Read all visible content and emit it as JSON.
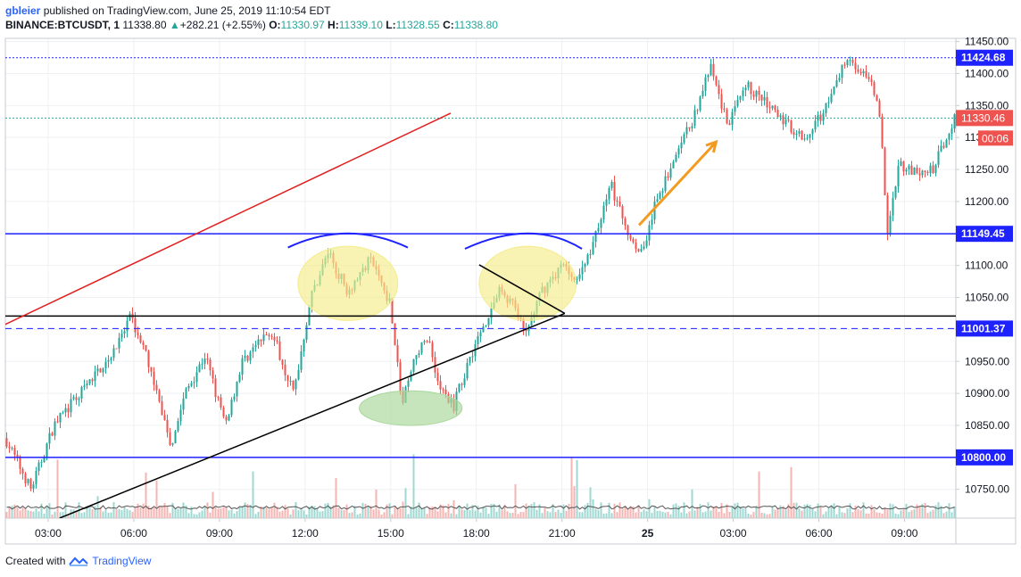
{
  "header": {
    "author": "gbleier",
    "published_text": "published on TradingView.com, June 25, 2019 11:10:54 EDT",
    "symbol": "BINANCE:BTCUSDT, 1",
    "last": "11338.80",
    "change": "+282.21 (+2.55%)",
    "open_label": "O:",
    "open": "11330.97",
    "high_label": "H:",
    "high": "11339.10",
    "low_label": "L:",
    "low": "11328.55",
    "close_label": "C:",
    "close": "11338.80"
  },
  "footer": {
    "created_with": "Created with",
    "brand": "TradingView"
  },
  "chart_data": {
    "type": "candlestick",
    "y_range": [
      10705,
      11455
    ],
    "x_range_hours": [
      1.5,
      34.8
    ],
    "y_ticks": [
      11450,
      11400,
      11350,
      11300,
      11250,
      11200,
      11150,
      11100,
      11050,
      11000,
      10950,
      10900,
      10850,
      10800,
      10750
    ],
    "y_tick_labels": [
      "11450.00",
      "11400.00",
      "11350.00",
      "11300.00",
      "11250.00",
      "11200.00",
      "11150.00",
      "11100.00",
      "11050.00",
      "11000.00",
      "10950.00",
      "10900.00",
      "10850.00",
      "10800.00",
      "10750.00"
    ],
    "x_ticks": [
      {
        "h": 3,
        "label": "03:00"
      },
      {
        "h": 6,
        "label": "06:00"
      },
      {
        "h": 9,
        "label": "09:00"
      },
      {
        "h": 12,
        "label": "12:00"
      },
      {
        "h": 15,
        "label": "15:00"
      },
      {
        "h": 18,
        "label": "18:00"
      },
      {
        "h": 21,
        "label": "21:00"
      },
      {
        "h": 24,
        "label": "25",
        "bold": true
      },
      {
        "h": 27,
        "label": "03:00"
      },
      {
        "h": 30,
        "label": "06:00"
      },
      {
        "h": 33,
        "label": "09:00"
      }
    ],
    "price_path": [
      [
        1.5,
        10830
      ],
      [
        2.4,
        10750
      ],
      [
        3.2,
        10850
      ],
      [
        4.5,
        10920
      ],
      [
        5.5,
        10980
      ],
      [
        5.9,
        11020
      ],
      [
        6.5,
        10950
      ],
      [
        7.3,
        10820
      ],
      [
        7.8,
        10900
      ],
      [
        8.5,
        10960
      ],
      [
        9.2,
        10850
      ],
      [
        9.8,
        10950
      ],
      [
        10.8,
        11000
      ],
      [
        11.6,
        10900
      ],
      [
        12.2,
        11050
      ],
      [
        12.8,
        11120
      ],
      [
        13.5,
        11060
      ],
      [
        14.3,
        11110
      ],
      [
        15.0,
        11040
      ],
      [
        15.4,
        10880
      ],
      [
        15.8,
        10950
      ],
      [
        16.3,
        10990
      ],
      [
        16.7,
        10910
      ],
      [
        17.2,
        10880
      ],
      [
        17.8,
        10960
      ],
      [
        18.3,
        11010
      ],
      [
        18.8,
        11060
      ],
      [
        19.3,
        11040
      ],
      [
        19.7,
        10990
      ],
      [
        20.3,
        11060
      ],
      [
        21.0,
        11100
      ],
      [
        21.6,
        11080
      ],
      [
        22.2,
        11150
      ],
      [
        22.7,
        11230
      ],
      [
        23.2,
        11160
      ],
      [
        23.8,
        11120
      ],
      [
        24.3,
        11200
      ],
      [
        25.0,
        11270
      ],
      [
        25.6,
        11330
      ],
      [
        26.2,
        11410
      ],
      [
        26.8,
        11320
      ],
      [
        27.5,
        11380
      ],
      [
        28.2,
        11350
      ],
      [
        28.9,
        11320
      ],
      [
        29.6,
        11300
      ],
      [
        30.4,
        11360
      ],
      [
        31.0,
        11430
      ],
      [
        31.6,
        11395
      ],
      [
        32.1,
        11360
      ],
      [
        32.4,
        11150
      ],
      [
        32.8,
        11260
      ],
      [
        33.5,
        11240
      ],
      [
        34.0,
        11250
      ],
      [
        34.8,
        11338
      ]
    ],
    "horizontal_lines": [
      {
        "price": 11424.68,
        "label": "11424.68",
        "style": "dotted",
        "color": "#1e22ff"
      },
      {
        "price": 11330.46,
        "label": "11330.46",
        "style": "dotted",
        "color": "#26a69a"
      },
      {
        "price": 11149.45,
        "label": "11149.45",
        "style": "solid",
        "color": "#1e22ff"
      },
      {
        "price": 11021,
        "style": "solid",
        "color": "#000000"
      },
      {
        "price": 11001.37,
        "label": "11001.37",
        "style": "dashed",
        "color": "#1e22ff"
      },
      {
        "price": 10800.0,
        "label": "10800.00",
        "style": "solid",
        "color": "#1e22ff"
      }
    ],
    "price_label": {
      "price": 11330.46,
      "label": "11330.46",
      "timer": "00:06",
      "color": "#ef5350"
    },
    "trend_lines": [
      {
        "from": [
          1.5,
          11008
        ],
        "to": [
          17.1,
          11338
        ],
        "color": "#e32020"
      },
      {
        "from": [
          3.4,
          10705
        ],
        "to": [
          21.1,
          11025
        ],
        "color": "#000000"
      },
      {
        "from": [
          18.1,
          11101
        ],
        "to": [
          21.1,
          11025
        ],
        "color": "#000000"
      }
    ],
    "arrow": {
      "from": [
        23.7,
        11163
      ],
      "to": [
        26.4,
        11293
      ],
      "color": "#f39a20"
    },
    "ellipses": [
      {
        "center": [
          13.5,
          11072
        ],
        "rx_hours": 1.75,
        "ry_price": 58,
        "fill": "#f4ec8a"
      },
      {
        "center": [
          19.8,
          11072
        ],
        "rx_hours": 1.7,
        "ry_price": 58,
        "fill": "#f4ec8a"
      },
      {
        "center": [
          15.7,
          10877
        ],
        "rx_hours": 1.8,
        "ry_price": 27,
        "fill": "#a9d79a"
      }
    ],
    "arcs": [
      {
        "from": [
          11.4,
          11128
        ],
        "peak": [
          13.5,
          11150
        ],
        "to": [
          15.6,
          11128
        ],
        "color": "#1e22ff"
      },
      {
        "from": [
          17.6,
          11126
        ],
        "peak": [
          19.8,
          11150
        ],
        "to": [
          21.7,
          11126
        ],
        "color": "#1e22ff"
      }
    ]
  }
}
